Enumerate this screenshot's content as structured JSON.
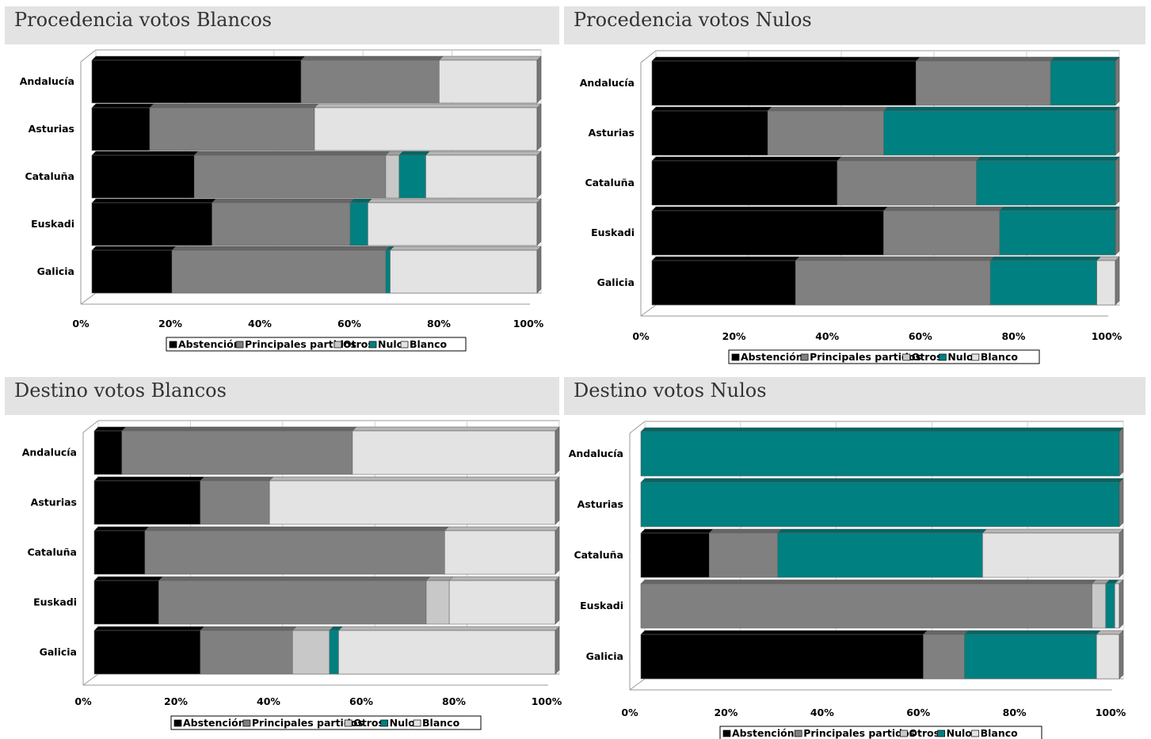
{
  "colors": {
    "abstencion": "#000000",
    "principales": "#808080",
    "otros": "#c8c8c8",
    "nulo": "#008080",
    "blanco": "#e3e3e3",
    "title_bg": "#e3e3e3"
  },
  "chart_data": [
    {
      "type": "bar",
      "stacked": true,
      "orientation": "horizontal",
      "title": "Procedencia votos Blancos",
      "categories": [
        "Andalucía",
        "Asturias",
        "Cataluña",
        "Euskadi",
        "Galicia"
      ],
      "xlim": [
        0,
        100
      ],
      "xticks": [
        "0%",
        "20%",
        "40%",
        "60%",
        "80%",
        "100%"
      ],
      "legend_position": "bottom",
      "series": [
        {
          "name": "Abstención",
          "values": [
            47,
            13,
            23,
            27,
            18
          ]
        },
        {
          "name": "Principales partidos",
          "values": [
            31,
            37,
            43,
            31,
            48
          ]
        },
        {
          "name": "Otros",
          "values": [
            0,
            0,
            3,
            0,
            0
          ]
        },
        {
          "name": "Nulo",
          "values": [
            0,
            0,
            6,
            4,
            1
          ]
        },
        {
          "name": "Blanco",
          "values": [
            22,
            50,
            25,
            38,
            33
          ]
        }
      ]
    },
    {
      "type": "bar",
      "stacked": true,
      "orientation": "horizontal",
      "title": "Procedencia votos Nulos",
      "categories": [
        "Andalucía",
        "Asturias",
        "Cataluña",
        "Euskadi",
        "Galicia"
      ],
      "xlim": [
        0,
        100
      ],
      "xticks": [
        "0%",
        "20%",
        "40%",
        "60%",
        "80%",
        "100%"
      ],
      "legend_position": "bottom",
      "series": [
        {
          "name": "Abstención",
          "values": [
            57,
            25,
            40,
            50,
            31
          ]
        },
        {
          "name": "Principales partidos",
          "values": [
            29,
            25,
            30,
            25,
            42
          ]
        },
        {
          "name": "Otros",
          "values": [
            0,
            0,
            0,
            0,
            0
          ]
        },
        {
          "name": "Nulo",
          "values": [
            14,
            50,
            30,
            25,
            23
          ]
        },
        {
          "name": "Blanco",
          "values": [
            0,
            0,
            0,
            0,
            4
          ]
        }
      ]
    },
    {
      "type": "bar",
      "stacked": true,
      "orientation": "horizontal",
      "title": "Destino votos Blancos",
      "categories": [
        "Andalucía",
        "Asturias",
        "Cataluña",
        "Euskadi",
        "Galicia"
      ],
      "xlim": [
        0,
        100
      ],
      "xticks": [
        "0%",
        "20%",
        "40%",
        "60%",
        "80%",
        "100%"
      ],
      "legend_position": "bottom",
      "series": [
        {
          "name": "Abstención",
          "values": [
            6,
            23,
            11,
            14,
            23
          ]
        },
        {
          "name": "Principales partidos",
          "values": [
            50,
            15,
            65,
            58,
            20
          ]
        },
        {
          "name": "Otros",
          "values": [
            0,
            0,
            0,
            5,
            8
          ]
        },
        {
          "name": "Nulo",
          "values": [
            0,
            0,
            0,
            0,
            2
          ]
        },
        {
          "name": "Blanco",
          "values": [
            44,
            62,
            24,
            23,
            47
          ]
        }
      ]
    },
    {
      "type": "bar",
      "stacked": true,
      "orientation": "horizontal",
      "title": "Destino votos Nulos",
      "categories": [
        "Andalucía",
        "Asturias",
        "Cataluña",
        "Euskadi",
        "Galicia"
      ],
      "xlim": [
        0,
        100
      ],
      "xticks": [
        "0%",
        "20%",
        "40%",
        "60%",
        "80%",
        "100%"
      ],
      "legend_position": "bottom",
      "series": [
        {
          "name": "Abstención",
          "values": [
            0,
            0,
            15,
            0,
            62
          ]
        },
        {
          "name": "Principales partidos",
          "values": [
            0,
            0,
            15,
            99,
            9
          ]
        },
        {
          "name": "Otros",
          "values": [
            0,
            0,
            0,
            3,
            0
          ]
        },
        {
          "name": "Nulo",
          "values": [
            100,
            100,
            45,
            2,
            29
          ]
        },
        {
          "name": "Blanco",
          "values": [
            0,
            0,
            30,
            1,
            5
          ]
        }
      ]
    }
  ]
}
